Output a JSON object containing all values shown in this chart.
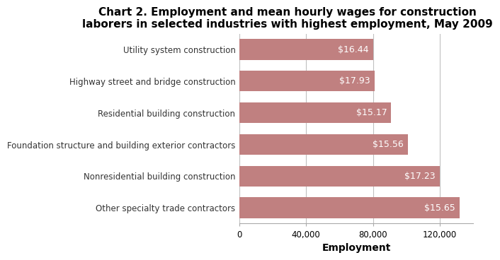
{
  "title": "Chart 2. Employment and mean hourly wages for construction\nlaborers in selected industries with highest employment, May 2009",
  "categories": [
    "Other specialty trade contractors",
    "Nonresidential building construction",
    "Foundation structure and building exterior contractors",
    "Residential building construction",
    "Highway street and bridge construction",
    "Utility system construction"
  ],
  "employment": [
    132000,
    120000,
    101000,
    91000,
    81000,
    80000
  ],
  "wages": [
    "$15.65",
    "$17.23",
    "$15.56",
    "$15.17",
    "$17.93",
    "$16.44"
  ],
  "bar_color": "#c08080",
  "xlabel": "Employment",
  "xlim": [
    0,
    140000
  ],
  "xticks": [
    0,
    40000,
    80000,
    120000
  ],
  "background_color": "#ffffff",
  "title_fontsize": 11,
  "label_fontsize": 8.5,
  "wage_fontsize": 9,
  "axis_label_fontsize": 10
}
